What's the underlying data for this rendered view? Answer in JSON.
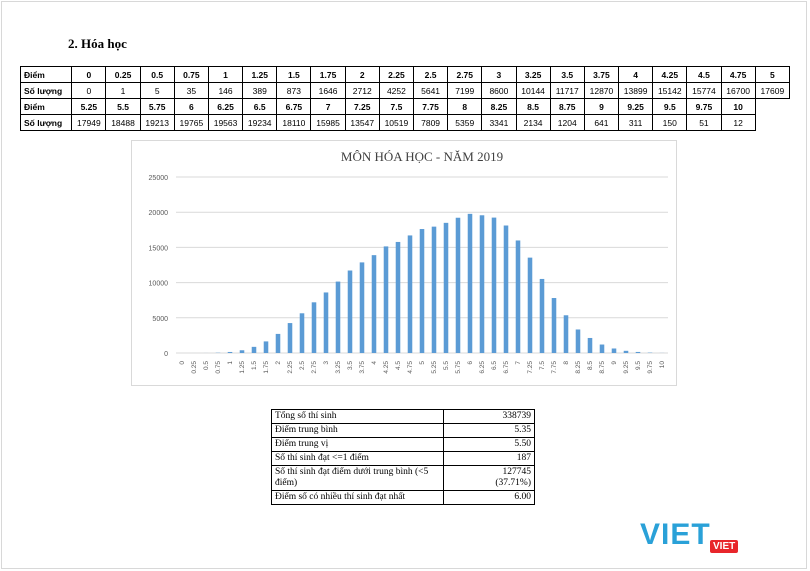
{
  "heading": "2.  Hóa học",
  "score_table": {
    "label_score": "Điểm",
    "label_count": "Số lượng",
    "row1_scores": [
      "0",
      "0.25",
      "0.5",
      "0.75",
      "1",
      "1.25",
      "1.5",
      "1.75",
      "2",
      "2.25",
      "2.5",
      "2.75",
      "3",
      "3.25",
      "3.5",
      "3.75",
      "4",
      "4.25",
      "4.5",
      "4.75",
      "5"
    ],
    "row1_counts": [
      "0",
      "1",
      "5",
      "35",
      "146",
      "389",
      "873",
      "1646",
      "2712",
      "4252",
      "5641",
      "7199",
      "8600",
      "10144",
      "11717",
      "12870",
      "13899",
      "15142",
      "15774",
      "16700",
      "17609"
    ],
    "row2_scores": [
      "5.25",
      "5.5",
      "5.75",
      "6",
      "6.25",
      "6.5",
      "6.75",
      "7",
      "7.25",
      "7.5",
      "7.75",
      "8",
      "8.25",
      "8.5",
      "8.75",
      "9",
      "9.25",
      "9.5",
      "9.75",
      "10"
    ],
    "row2_counts": [
      "17949",
      "18488",
      "19213",
      "19765",
      "19563",
      "19234",
      "18110",
      "15985",
      "13547",
      "10519",
      "7809",
      "5359",
      "3341",
      "2134",
      "1204",
      "641",
      "311",
      "150",
      "51",
      "12"
    ]
  },
  "chart_data": {
    "type": "bar",
    "title": "MÔN HÓA HỌC - NĂM 2019",
    "categories": [
      "0",
      "0.25",
      "0.5",
      "0.75",
      "1",
      "1.25",
      "1.5",
      "1.75",
      "2",
      "2.25",
      "2.5",
      "2.75",
      "3",
      "3.25",
      "3.5",
      "3.75",
      "4",
      "4.25",
      "4.5",
      "4.75",
      "5",
      "5.25",
      "5.5",
      "5.75",
      "6",
      "6.25",
      "6.5",
      "6.75",
      "7",
      "7.25",
      "7.5",
      "7.75",
      "8",
      "8.25",
      "8.5",
      "8.75",
      "9",
      "9.25",
      "9.5",
      "9.75",
      "10"
    ],
    "values": [
      0,
      1,
      5,
      35,
      146,
      389,
      873,
      1646,
      2712,
      4252,
      5641,
      7199,
      8600,
      10144,
      11717,
      12870,
      13899,
      15142,
      15774,
      16700,
      17609,
      17949,
      18488,
      19213,
      19765,
      19563,
      19234,
      18110,
      15985,
      13547,
      10519,
      7809,
      5359,
      3341,
      2134,
      1204,
      641,
      311,
      150,
      51,
      12
    ],
    "ylim": [
      0,
      25000
    ],
    "yticks": [
      "0",
      "5000",
      "10000",
      "15000",
      "20000",
      "25000"
    ],
    "xlabel": "",
    "ylabel": "",
    "grid": true,
    "bar_color": "#5b9bd5"
  },
  "stats": [
    {
      "label": "Tổng số thí sinh",
      "value": "338739"
    },
    {
      "label": "Điểm trung bình",
      "value": "5.35"
    },
    {
      "label": "Điểm trung vị",
      "value": "5.50"
    },
    {
      "label": "Số thí sinh đạt <=1 điểm",
      "value": "187"
    },
    {
      "label": "Số thí sinh đạt điểm dưới trung bình (<5 điểm)",
      "value": "127745",
      "value2": "(37.71%)"
    },
    {
      "label": "Điểm số có nhiều thí sinh đạt nhất",
      "value": "6.00"
    }
  ],
  "watermark": {
    "text": "VIET",
    "badge": "VIET"
  }
}
